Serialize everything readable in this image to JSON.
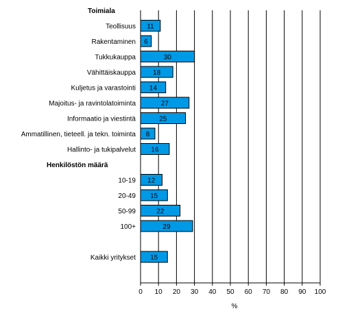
{
  "chart_data": {
    "type": "bar",
    "orientation": "horizontal",
    "xlabel": "%",
    "xlim": [
      0,
      100
    ],
    "xticks": [
      0,
      10,
      20,
      30,
      40,
      50,
      60,
      70,
      80,
      90,
      100
    ],
    "grid": true,
    "bar_color": "#0099e6",
    "rows": [
      {
        "kind": "group",
        "label": "Toimiala"
      },
      {
        "kind": "bar",
        "label": "Teollisuus",
        "value": 11
      },
      {
        "kind": "bar",
        "label": "Rakentaminen",
        "value": 6
      },
      {
        "kind": "bar",
        "label": "Tukkukauppa",
        "value": 30
      },
      {
        "kind": "bar",
        "label": "Vähittäiskauppa",
        "value": 18
      },
      {
        "kind": "bar",
        "label": "Kuljetus ja varastointi",
        "value": 14
      },
      {
        "kind": "bar",
        "label": "Majoitus- ja ravintolatoiminta",
        "value": 27
      },
      {
        "kind": "bar",
        "label": "Informaatio ja viestintä",
        "value": 25
      },
      {
        "kind": "bar",
        "label": "Ammatillinen, tieteell. ja tekn. toiminta",
        "value": 8
      },
      {
        "kind": "bar",
        "label": "Hallinto- ja tukipalvelut",
        "value": 16
      },
      {
        "kind": "group",
        "label": "Henkilöstön määrä"
      },
      {
        "kind": "bar",
        "label": "10-19",
        "value": 12
      },
      {
        "kind": "bar",
        "label": "20-49",
        "value": 15
      },
      {
        "kind": "bar",
        "label": "50-99",
        "value": 22
      },
      {
        "kind": "bar",
        "label": "100+",
        "value": 29
      },
      {
        "kind": "spacer"
      },
      {
        "kind": "bar",
        "label": "Kaikki yritykset",
        "value": 15
      }
    ]
  }
}
